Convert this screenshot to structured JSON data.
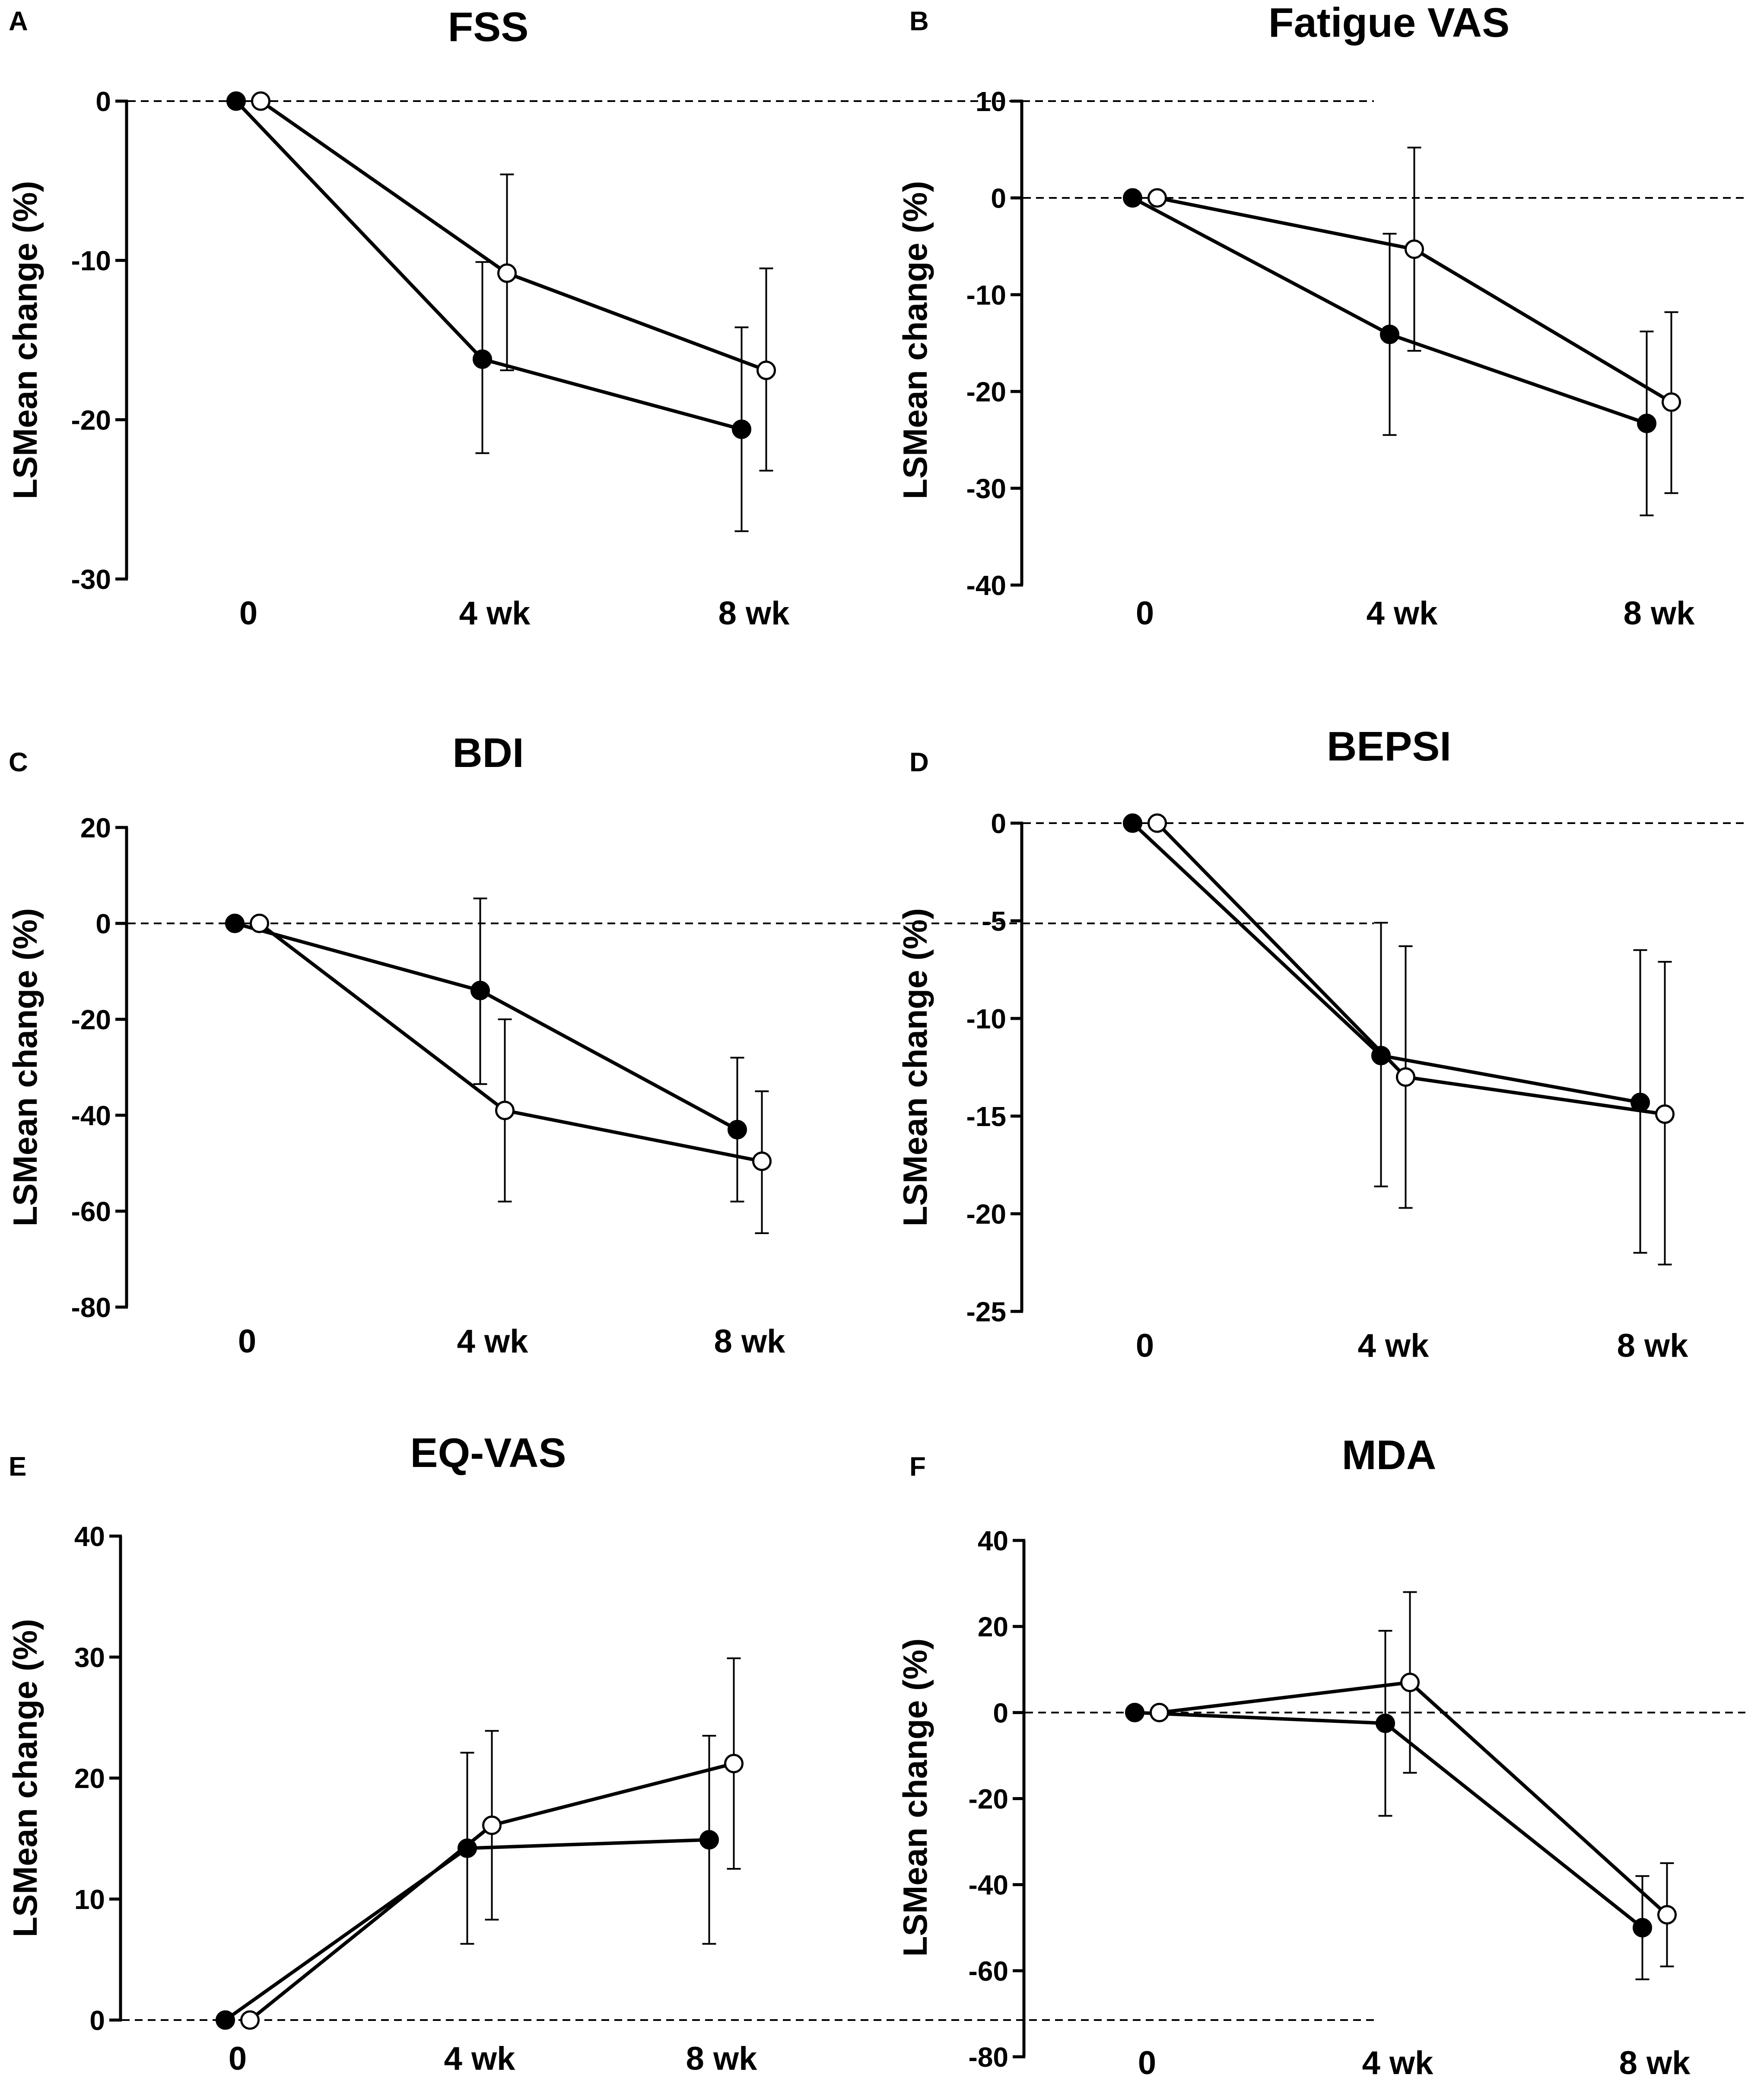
{
  "figure": {
    "panels": [
      {
        "id": "A",
        "title": "FSS"
      },
      {
        "id": "B",
        "title": "Fatigue VAS"
      },
      {
        "id": "C",
        "title": "BDI"
      },
      {
        "id": "D",
        "title": "BEPSI"
      },
      {
        "id": "E",
        "title": "EQ-VAS"
      },
      {
        "id": "F",
        "title": "MDA"
      }
    ]
  },
  "chart_data": [
    {
      "panel": "A",
      "type": "line",
      "title": "FSS",
      "xlabel": "",
      "ylabel": "LSMean change (%)",
      "categories": [
        "0",
        "4 wk",
        "8 wk"
      ],
      "ylim": [
        -30,
        0
      ],
      "yticks": [
        0,
        -10,
        -20,
        -30
      ],
      "reference_line": 0,
      "series": [
        {
          "name": "filled",
          "marker": "filled-circle",
          "values": [
            0,
            -16.2,
            -20.6
          ],
          "error_low": [
            0,
            -22.1,
            -27.0
          ],
          "error_high": [
            0,
            -10.1,
            -14.2
          ]
        },
        {
          "name": "open",
          "marker": "open-circle",
          "values": [
            0,
            -10.8,
            -16.9
          ],
          "error_low": [
            0,
            -16.9,
            -23.2
          ],
          "error_high": [
            0,
            -4.6,
            -10.5
          ]
        }
      ]
    },
    {
      "panel": "B",
      "type": "line",
      "title": "Fatigue VAS",
      "xlabel": "",
      "ylabel": "LSMean change (%)",
      "categories": [
        "0",
        "4 wk",
        "8 wk"
      ],
      "ylim": [
        -40,
        10
      ],
      "yticks": [
        10,
        0,
        -10,
        -20,
        -30,
        -40
      ],
      "reference_line": 0,
      "series": [
        {
          "name": "filled",
          "marker": "filled-circle",
          "values": [
            0,
            -14.1,
            -23.3
          ],
          "error_low": [
            0,
            -24.5,
            -32.8
          ],
          "error_high": [
            0,
            -3.7,
            -13.8
          ]
        },
        {
          "name": "open",
          "marker": "open-circle",
          "values": [
            0,
            -5.3,
            -21.1
          ],
          "error_low": [
            0,
            -15.8,
            -30.5
          ],
          "error_high": [
            0,
            5.2,
            -11.8
          ]
        }
      ]
    },
    {
      "panel": "C",
      "type": "line",
      "title": "BDI",
      "xlabel": "",
      "ylabel": "LSMean change (%)",
      "categories": [
        "0",
        "4 wk",
        "8 wk"
      ],
      "ylim": [
        -80,
        20
      ],
      "yticks": [
        20,
        0,
        -20,
        -40,
        -60,
        -80
      ],
      "reference_line": 0,
      "series": [
        {
          "name": "filled",
          "marker": "filled-circle",
          "values": [
            0,
            -14.0,
            -43.0
          ],
          "error_low": [
            0,
            -33.5,
            -58.0
          ],
          "error_high": [
            0,
            5.2,
            -28.0
          ]
        },
        {
          "name": "open",
          "marker": "open-circle",
          "values": [
            0,
            -39.0,
            -49.6
          ],
          "error_low": [
            0,
            -58.0,
            -64.6
          ],
          "error_high": [
            0,
            -20.0,
            -35.0
          ]
        }
      ]
    },
    {
      "panel": "D",
      "type": "line",
      "title": "BEPSI",
      "xlabel": "",
      "ylabel": "LSMean change (%)",
      "categories": [
        "0",
        "4 wk",
        "8 wk"
      ],
      "ylim": [
        -25,
        0
      ],
      "yticks": [
        0,
        -5,
        -10,
        -15,
        -20,
        -25
      ],
      "reference_line": 0,
      "series": [
        {
          "name": "filled",
          "marker": "filled-circle",
          "values": [
            0,
            -11.9,
            -14.3
          ],
          "error_low": [
            0,
            -18.6,
            -22.0
          ],
          "error_high": [
            0,
            -5.1,
            -6.5
          ]
        },
        {
          "name": "open",
          "marker": "open-circle",
          "values": [
            0,
            -13.0,
            -14.9
          ],
          "error_low": [
            0,
            -19.7,
            -22.6
          ],
          "error_high": [
            0,
            -6.3,
            -7.1
          ]
        }
      ]
    },
    {
      "panel": "E",
      "type": "line",
      "title": "EQ-VAS",
      "xlabel": "",
      "ylabel": "LSMean change (%)",
      "categories": [
        "0",
        "4 wk",
        "8 wk"
      ],
      "ylim": [
        0,
        40
      ],
      "yticks": [
        40,
        30,
        20,
        10,
        0
      ],
      "reference_line": 0,
      "series": [
        {
          "name": "filled",
          "marker": "filled-circle",
          "values": [
            0,
            14.2,
            14.9
          ],
          "error_low": [
            0,
            6.3,
            6.3
          ],
          "error_high": [
            0,
            22.1,
            23.5
          ]
        },
        {
          "name": "open",
          "marker": "open-circle",
          "values": [
            0,
            16.1,
            21.2
          ],
          "error_low": [
            0,
            8.3,
            12.5
          ],
          "error_high": [
            0,
            23.9,
            29.9
          ]
        }
      ]
    },
    {
      "panel": "F",
      "type": "line",
      "title": "MDA",
      "xlabel": "",
      "ylabel": "LSMean change (%)",
      "categories": [
        "0",
        "4 wk",
        "8 wk"
      ],
      "ylim": [
        -80,
        40
      ],
      "yticks": [
        40,
        20,
        0,
        -20,
        -40,
        -60,
        -80
      ],
      "reference_line": 0,
      "series": [
        {
          "name": "filled",
          "marker": "filled-circle",
          "values": [
            0,
            -2.5,
            -50.0
          ],
          "error_low": [
            0,
            -24.0,
            -62.0
          ],
          "error_high": [
            0,
            19.0,
            -38.0
          ]
        },
        {
          "name": "open",
          "marker": "open-circle",
          "values": [
            0,
            7.0,
            -47.0
          ],
          "error_low": [
            0,
            -14.0,
            -59.0
          ],
          "error_high": [
            0,
            28.0,
            -35.0
          ]
        }
      ]
    }
  ]
}
